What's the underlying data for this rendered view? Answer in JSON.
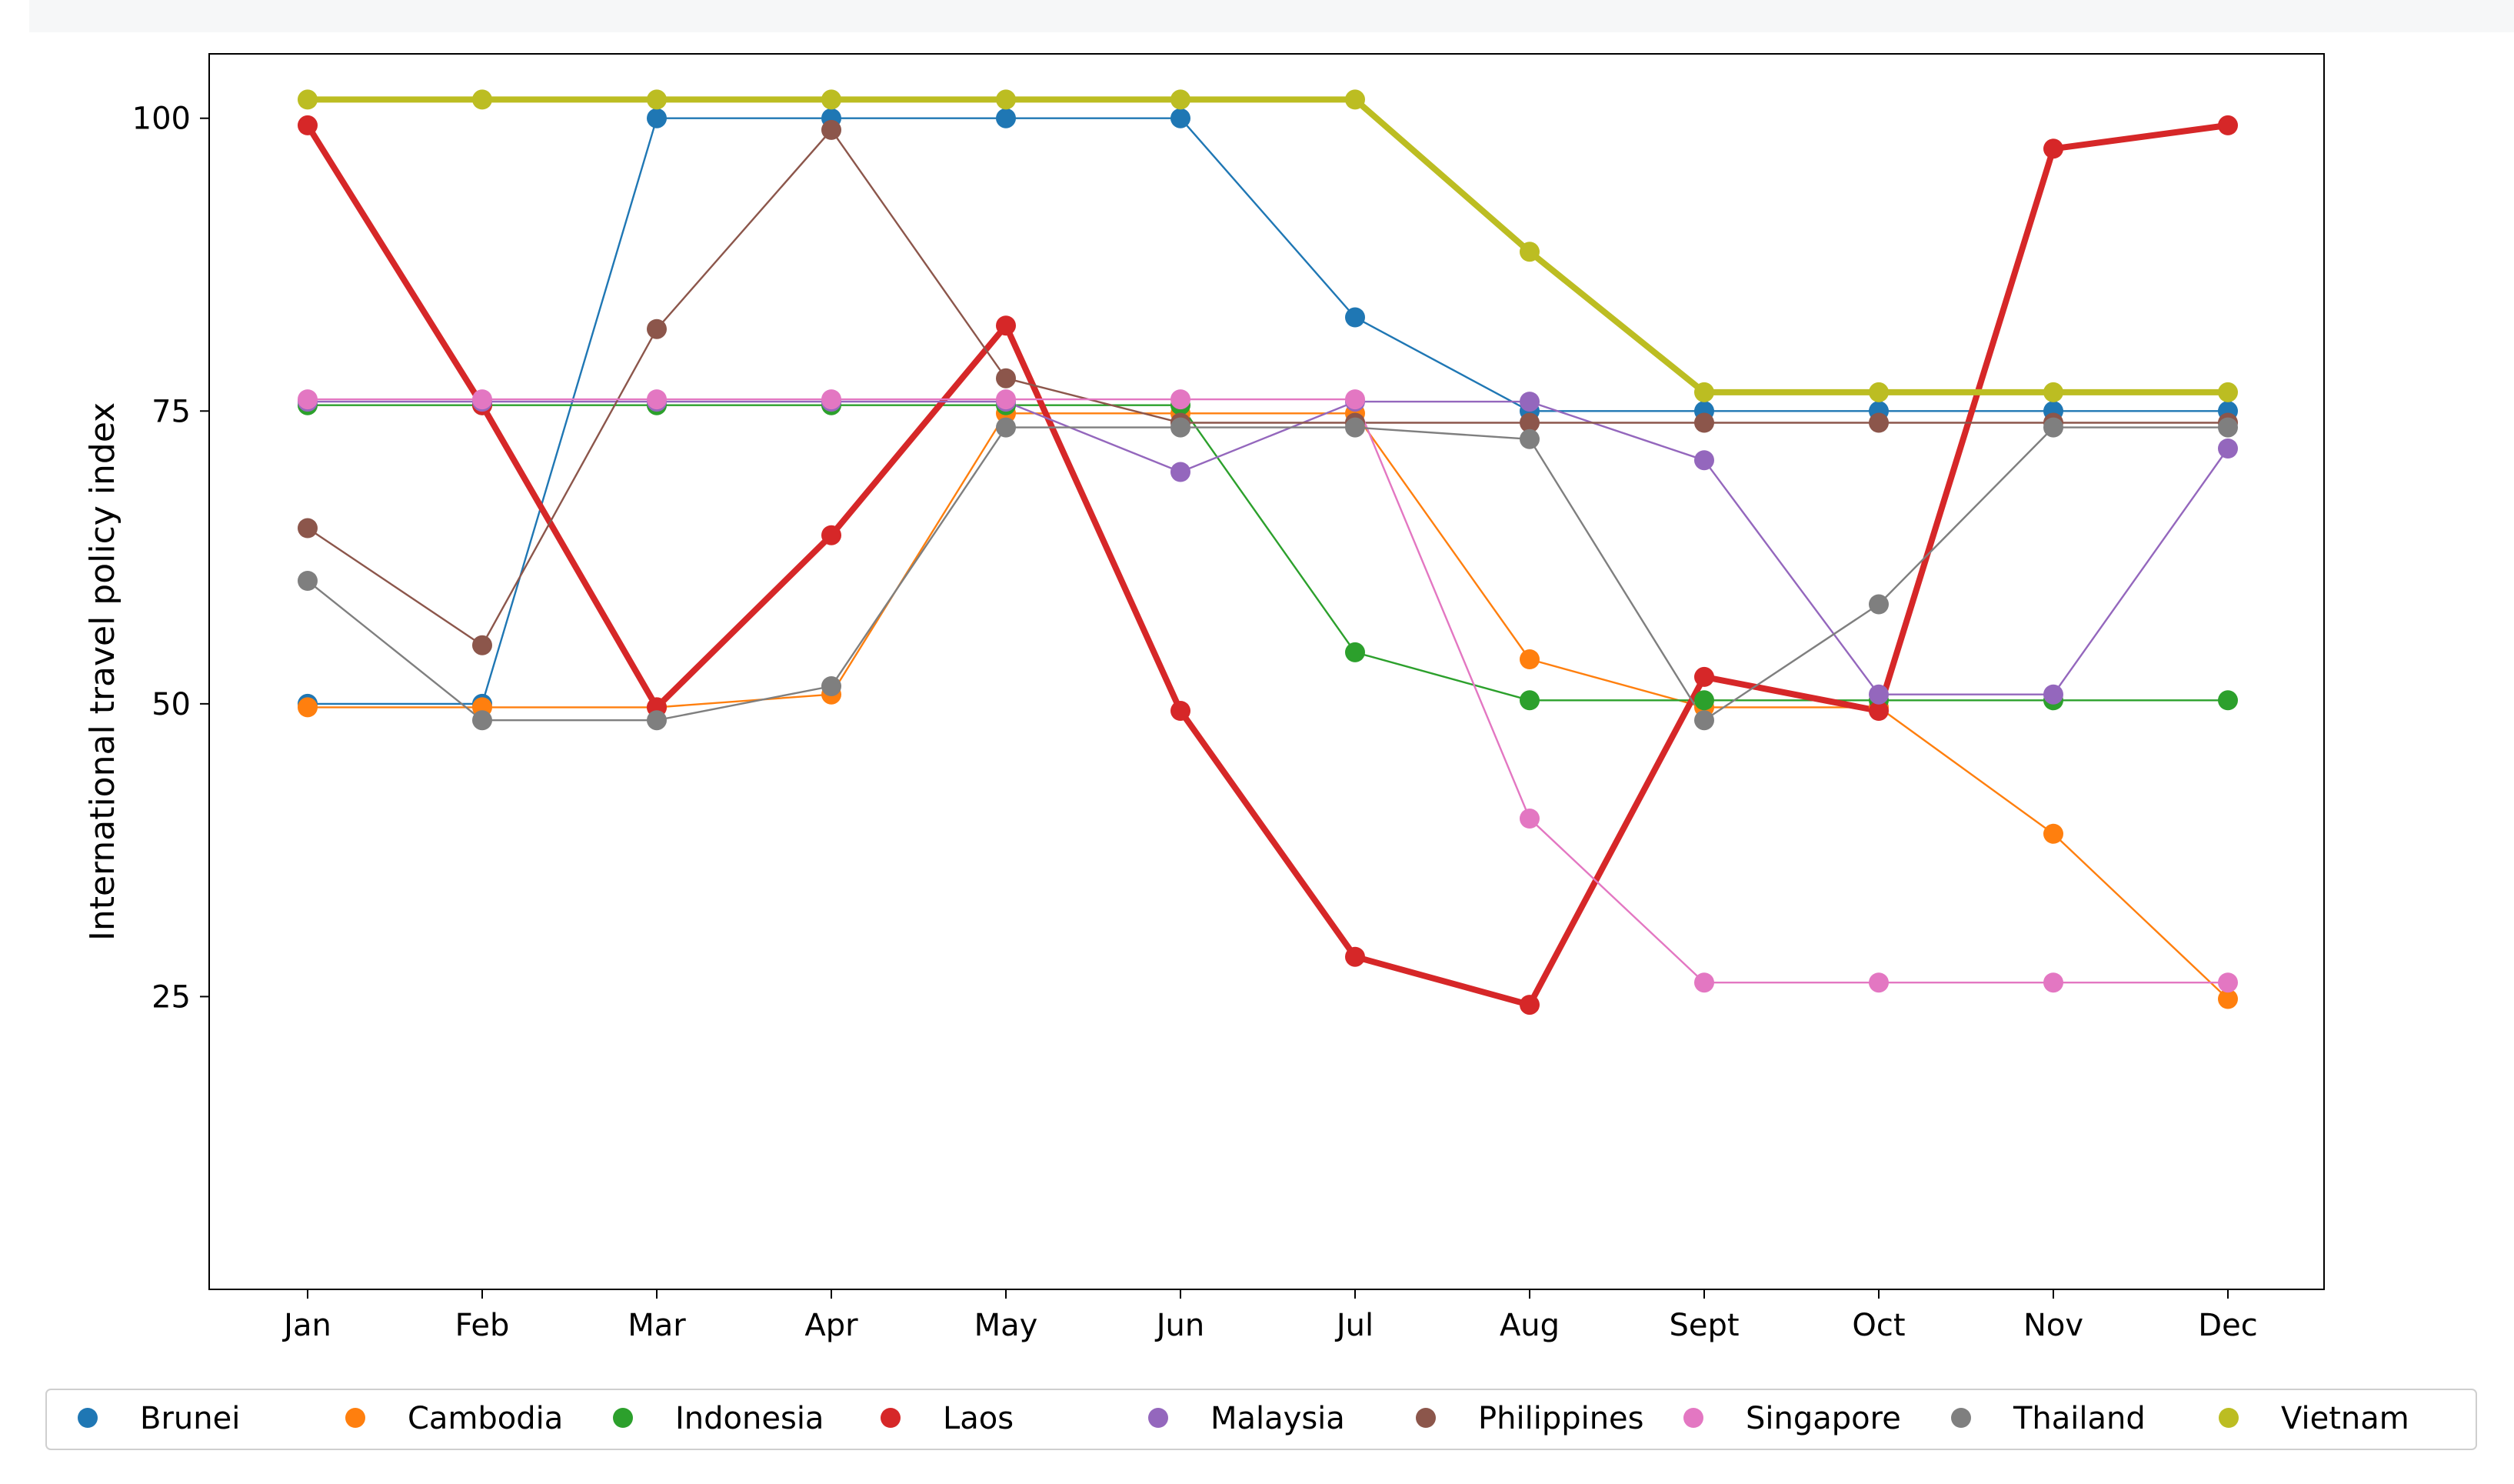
{
  "chart_data": {
    "type": "line",
    "title": "",
    "xlabel": "",
    "ylabel": "International travel policy index",
    "categories": [
      "Jan",
      "Feb",
      "Mar",
      "Apr",
      "May",
      "Jun",
      "Jul",
      "Aug",
      "Sept",
      "Oct",
      "Nov",
      "Dec"
    ],
    "ylim": [
      0,
      105.5
    ],
    "yticks": [
      {
        "value": 25,
        "label": "25"
      },
      {
        "value": 50,
        "label": "50"
      },
      {
        "value": 75,
        "label": "75"
      },
      {
        "value": 100,
        "label": "100"
      }
    ],
    "grid": false,
    "legend_position": "bottom",
    "series": [
      {
        "name": "Brunei",
        "color": "#1f77b4",
        "emphasis": false,
        "values": [
          50,
          50,
          100,
          100,
          100,
          100,
          83,
          75,
          75,
          75,
          75,
          75
        ]
      },
      {
        "name": "Cambodia",
        "color": "#ff7f0e",
        "emphasis": false,
        "values": [
          49.7,
          49.7,
          49.7,
          50.8,
          74.8,
          74.8,
          74.8,
          53.8,
          49.7,
          49.7,
          38.9,
          24.8
        ]
      },
      {
        "name": "Indonesia",
        "color": "#2ca02c",
        "emphasis": false,
        "values": [
          75.5,
          75.5,
          75.5,
          75.5,
          75.5,
          75.5,
          54.4,
          50.3,
          50.3,
          50.3,
          50.3,
          50.3
        ]
      },
      {
        "name": "Laos",
        "color": "#d62728",
        "emphasis": true,
        "values": [
          99.4,
          75.5,
          49.7,
          64.4,
          82.3,
          49.4,
          28.4,
          24.3,
          52.3,
          49.4,
          97.4,
          99.4
        ]
      },
      {
        "name": "Malaysia",
        "color": "#9467bd",
        "emphasis": false,
        "values": [
          75.8,
          75.8,
          75.8,
          75.8,
          75.8,
          69.8,
          75.8,
          75.8,
          70.8,
          50.8,
          50.8,
          71.8
        ]
      },
      {
        "name": "Philippines",
        "color": "#8c564b",
        "emphasis": false,
        "values": [
          65,
          55,
          82,
          99,
          77.8,
          74,
          74,
          74,
          74,
          74,
          74,
          74
        ]
      },
      {
        "name": "Singapore",
        "color": "#e377c2",
        "emphasis": false,
        "values": [
          76,
          76,
          76,
          76,
          76,
          76,
          76,
          40.2,
          26.2,
          26.2,
          26.2,
          26.2
        ]
      },
      {
        "name": "Thailand",
        "color": "#7f7f7f",
        "emphasis": false,
        "values": [
          60.5,
          48.6,
          48.6,
          51.5,
          73.6,
          73.6,
          73.6,
          72.6,
          48.6,
          58.5,
          73.6,
          73.6
        ]
      },
      {
        "name": "Vietnam",
        "color": "#bcbd22",
        "emphasis": true,
        "values": [
          101.6,
          101.6,
          101.6,
          101.6,
          101.6,
          101.6,
          101.6,
          88.6,
          76.6,
          76.6,
          76.6,
          76.6
        ]
      }
    ]
  }
}
